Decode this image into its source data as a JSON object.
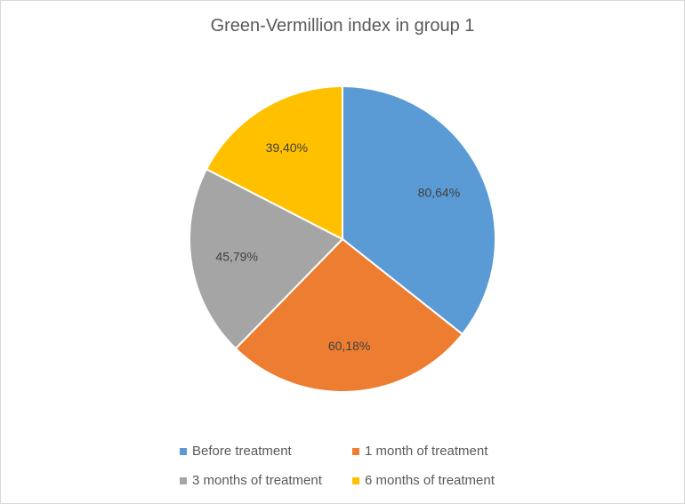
{
  "chart_data": {
    "type": "pie",
    "title": "Green-Vermillion index in group 1",
    "categories": [
      "Before treatment",
      "1 month of treatment",
      "3 months of treatment",
      "6 months of treatment"
    ],
    "values": [
      80.64,
      60.18,
      45.79,
      39.4
    ],
    "data_labels": [
      "80,64%",
      "60,18%",
      "45,79%",
      "39,40%"
    ],
    "colors": [
      "#5b9bd5",
      "#ed7d31",
      "#a5a5a5",
      "#ffc000"
    ],
    "legend_position": "bottom"
  }
}
